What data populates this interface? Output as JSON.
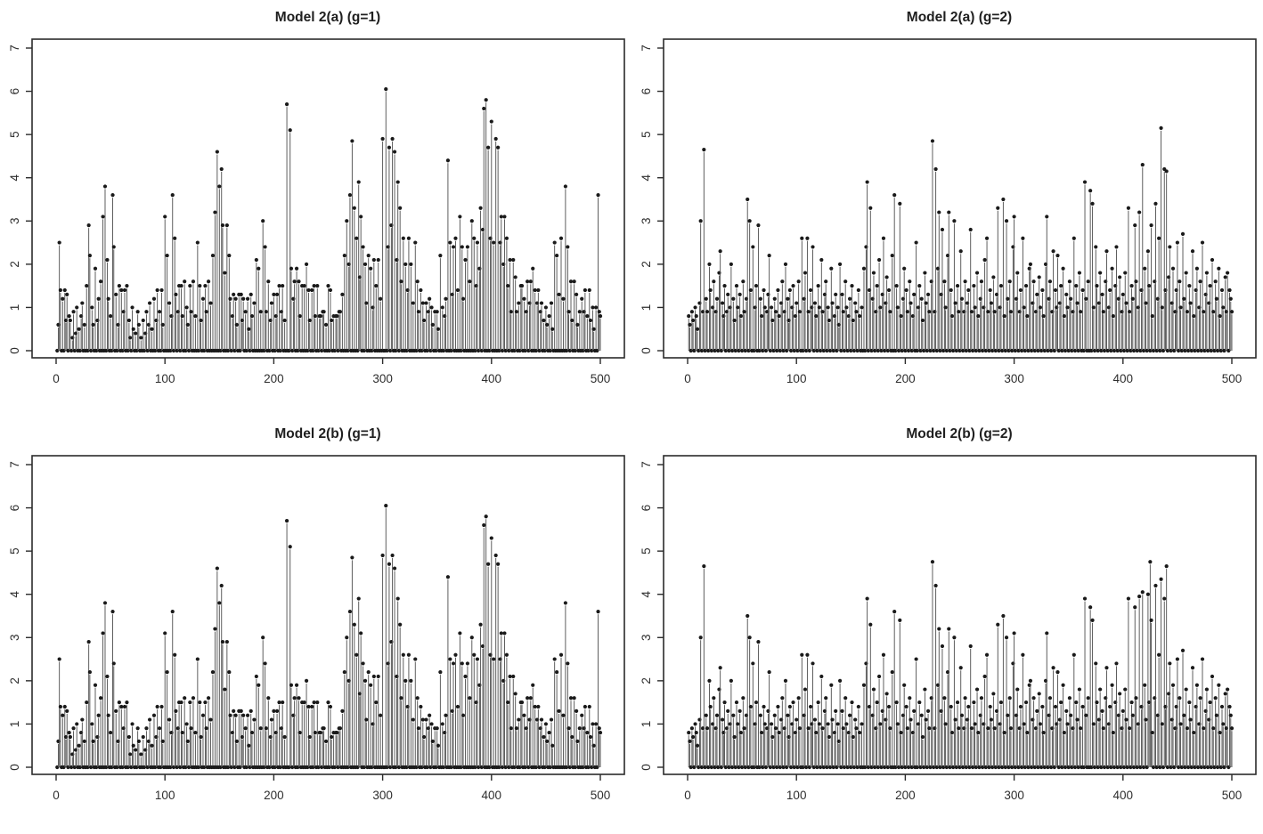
{
  "figure": {
    "kind": "R-style 2x2 stem plot grid",
    "background": "#ffffff"
  },
  "chart_data": {
    "type": "stem",
    "marker": "filled-dot",
    "xlim": [
      0,
      500
    ],
    "ylim": [
      0,
      7
    ],
    "x_ticks": [
      0,
      100,
      200,
      300,
      400,
      500
    ],
    "y_ticks": [
      0,
      1,
      2,
      3,
      4,
      5,
      6,
      7
    ],
    "grid": "off",
    "legend": "none",
    "xlabel": "",
    "ylabel": "",
    "n_points": 500,
    "colors": {
      "stem": "#4d4d4d",
      "point": "#1a1a1a",
      "axis": "#2b2b2b",
      "title": "#1f1f1f",
      "background": "#ffffff"
    },
    "panels": [
      {
        "title": "Model 2(a) (g=1)",
        "series": "g1"
      },
      {
        "title": "Model 2(a) (g=2)",
        "series": "g2"
      },
      {
        "title": "Model 2(b) (g=1)",
        "series": "g1"
      },
      {
        "title": "Model 2(b) (g=2)",
        "series": "g2",
        "overrides": "g2b"
      }
    ],
    "series": {
      "g1": [
        0,
        0.6,
        2.5,
        1.4,
        0,
        1.2,
        0,
        1.4,
        0.7,
        1.3,
        0,
        0.8,
        0.7,
        0,
        0.3,
        0.9,
        0,
        0.4,
        1.0,
        0,
        0.5,
        0,
        0.8,
        1.1,
        0,
        0.6,
        0,
        1.5,
        0,
        2.9,
        2.2,
        0,
        1.0,
        0.6,
        0,
        1.9,
        0,
        0.7,
        1.2,
        0,
        1.6,
        0,
        3.1,
        0,
        3.8,
        0,
        2.1,
        1.2,
        0,
        0.8,
        0,
        3.6,
        2.4,
        0,
        1.3,
        0,
        0.6,
        1.5,
        0,
        1.4,
        0,
        0.9,
        1.4,
        0,
        1.5,
        0,
        0.7,
        0.3,
        0,
        1.0,
        0.5,
        0,
        0.4,
        0,
        0.9,
        0.6,
        0,
        0.3,
        0,
        0.7,
        0,
        0.4,
        0.9,
        0,
        0.6,
        1.1,
        0,
        0.5,
        0,
        1.2,
        0,
        0.7,
        1.4,
        0,
        0.9,
        0,
        1.4,
        0.6,
        0,
        3.1,
        0,
        2.2,
        0,
        1.1,
        0,
        0.8,
        3.6,
        0,
        2.6,
        1.3,
        0,
        0.9,
        1.5,
        0,
        1.5,
        0.8,
        0,
        1.6,
        0,
        1.0,
        0.6,
        0,
        1.5,
        0.9,
        0,
        1.6,
        0,
        0.8,
        0,
        2.5,
        0,
        1.5,
        0.7,
        0,
        1.2,
        0,
        1.5,
        0.9,
        0,
        1.6,
        0,
        1.1,
        0,
        2.2,
        0,
        3.2,
        0,
        4.6,
        0,
        3.8,
        0,
        4.2,
        2.9,
        0,
        1.8,
        0,
        2.9,
        0,
        2.2,
        1.2,
        0,
        0.8,
        1.3,
        0,
        1.2,
        0.6,
        0,
        1.3,
        0,
        1.3,
        0.7,
        1.2,
        0,
        0.9,
        0,
        1.2,
        0.5,
        0,
        1.3,
        0.8,
        0,
        1.1,
        0,
        2.1,
        0,
        1.9,
        0,
        0.9,
        0,
        3.0,
        0,
        2.4,
        0.9,
        0,
        1.6,
        0,
        0.7,
        1.1,
        0,
        1.3,
        0,
        0.8,
        1.3,
        0,
        1.5,
        0,
        0.9,
        1.5,
        0,
        0.7,
        0,
        5.7,
        0,
        0,
        5.1,
        1.9,
        0,
        1.2,
        1.6,
        0,
        1.9,
        0,
        1.6,
        0.8,
        0,
        1.5,
        0,
        1.5,
        0,
        2.0,
        0,
        1.4,
        0.7,
        0,
        1.4,
        0,
        1.5,
        0.8,
        0,
        1.5,
        0,
        0.8,
        0.8,
        0,
        0.9,
        0.9,
        0,
        0.6,
        0,
        1.5,
        0,
        1.4,
        0.7,
        0,
        0.8,
        0,
        0.8,
        0.8,
        0,
        0.9,
        0.9,
        0,
        1.3,
        0,
        2.2,
        0,
        3.0,
        0,
        2.0,
        3.6,
        0,
        4.85,
        0,
        3.3,
        0,
        2.6,
        0,
        3.9,
        1.7,
        3.1,
        0,
        2.4,
        0,
        2.0,
        1.1,
        0,
        2.2,
        0,
        1.9,
        0,
        1.0,
        2.1,
        0,
        1.5,
        0,
        2.1,
        0,
        1.2,
        0,
        4.9,
        0,
        0,
        6.05,
        0,
        2.4,
        4.7,
        0,
        2.9,
        4.9,
        0,
        4.6,
        0,
        2.1,
        3.9,
        0,
        3.3,
        1.6,
        0,
        2.6,
        0,
        2.0,
        0,
        1.4,
        2.6,
        0,
        2.0,
        0,
        1.1,
        0,
        2.5,
        0,
        1.6,
        0.9,
        0,
        1.4,
        0,
        1.1,
        0.7,
        0,
        1.1,
        0,
        0.9,
        1.2,
        0,
        1.0,
        0.6,
        0,
        0.9,
        0,
        0.9,
        0.5,
        0,
        2.2,
        0,
        1.0,
        0,
        0.8,
        1.2,
        0,
        4.4,
        0,
        2.5,
        0,
        1.3,
        2.4,
        0,
        2.6,
        0,
        1.4,
        0,
        3.1,
        0,
        2.4,
        1.2,
        0,
        2.1,
        0,
        2.4,
        0,
        1.6,
        0,
        3.0,
        0,
        2.6,
        0,
        1.5,
        2.5,
        0,
        1.9,
        3.3,
        0,
        2.8,
        5.6,
        0,
        5.8,
        0,
        4.7,
        0,
        2.6,
        5.3,
        0,
        2.5,
        0,
        4.9,
        0,
        4.7,
        0,
        2.5,
        3.1,
        0,
        2.0,
        3.1,
        0,
        2.6,
        1.5,
        0,
        2.1,
        0.9,
        0,
        2.1,
        0,
        1.7,
        0.9,
        0,
        1.1,
        0,
        1.5,
        1.5,
        0,
        1.2,
        0,
        0.9,
        1.6,
        0,
        1.1,
        1.6,
        0,
        1.9,
        0,
        1.4,
        0,
        1.1,
        1.4,
        0,
        0.9,
        1.1,
        0,
        0.7,
        0,
        1.0,
        0.6,
        0,
        0.8,
        0,
        1.1,
        0.5,
        0,
        2.5,
        0,
        2.2,
        0,
        1.3,
        0,
        2.6,
        0,
        1.2,
        0,
        3.8,
        0,
        2.4,
        0.9,
        0,
        1.6,
        0.7,
        0,
        1.6,
        0,
        1.3,
        0.6,
        0,
        0.9,
        0,
        1.2,
        0,
        0.9,
        1.4,
        0,
        0.8,
        0,
        1.4,
        0.7,
        0,
        1.0,
        0.5,
        0,
        1.0,
        0,
        3.6,
        0.9,
        0.8
      ],
      "g2": [
        0.8,
        0.6,
        0,
        0.9,
        0.7,
        0,
        1.0,
        0.8,
        0.5,
        0,
        1.1,
        3.0,
        0,
        0.9,
        4.65,
        0,
        1.2,
        0.9,
        0,
        2.0,
        1.4,
        0,
        1.0,
        1.6,
        0,
        0.9,
        1.2,
        0,
        1.8,
        2.3,
        0,
        1.1,
        0.8,
        1.5,
        0,
        0.9,
        1.3,
        0,
        1.0,
        2.0,
        0,
        1.2,
        0.7,
        0,
        1.5,
        1.0,
        0,
        1.3,
        0.8,
        0,
        1.6,
        0.9,
        0,
        1.2,
        3.5,
        0,
        3.0,
        1.4,
        0,
        2.4,
        0,
        1.0,
        1.5,
        0,
        2.9,
        0,
        1.2,
        0.8,
        0,
        1.4,
        1.0,
        0,
        0.9,
        1.3,
        2.2,
        0,
        1.0,
        0.7,
        0,
        1.2,
        0.9,
        0,
        1.4,
        0.8,
        0,
        1.1,
        1.6,
        0,
        0.9,
        2.0,
        0,
        1.2,
        0.7,
        1.4,
        0,
        1.0,
        1.5,
        0,
        0.8,
        1.1,
        0,
        1.6,
        0.9,
        0,
        2.6,
        0,
        1.2,
        1.8,
        0,
        2.6,
        0.9,
        0,
        1.4,
        1.0,
        2.4,
        0,
        1.1,
        0.8,
        0,
        1.5,
        1.0,
        0,
        2.1,
        0.9,
        0,
        1.3,
        1.6,
        0,
        1.0,
        0.7,
        0,
        1.9,
        1.1,
        0,
        0.8,
        1.3,
        0,
        1.0,
        0.6,
        2.0,
        0,
        1.3,
        0.9,
        0,
        1.6,
        1.0,
        0,
        0.8,
        1.2,
        0,
        1.5,
        0.7,
        0,
        1.1,
        0.9,
        0,
        1.4,
        0.8,
        0,
        1.0,
        0,
        1.9,
        0,
        2.4,
        3.9,
        0,
        1.4,
        3.3,
        0,
        1.2,
        1.8,
        0,
        0.9,
        1.5,
        0,
        2.1,
        1.0,
        0,
        1.3,
        2.6,
        0,
        1.1,
        1.7,
        0,
        1.4,
        0.9,
        0,
        2.2,
        0,
        3.6,
        0,
        1.5,
        1.0,
        0,
        3.4,
        0.8,
        0,
        1.2,
        1.9,
        0,
        1.4,
        0.9,
        0,
        1.6,
        1.1,
        0,
        0.8,
        1.3,
        0,
        2.5,
        0,
        1.0,
        1.5,
        0,
        1.2,
        0.7,
        0,
        1.8,
        1.1,
        0,
        1.3,
        0.9,
        0,
        1.6,
        4.85,
        0,
        0.9,
        4.2,
        0,
        1.9,
        3.2,
        0,
        1.3,
        2.8,
        0,
        1.6,
        1.0,
        0,
        2.2,
        3.2,
        0,
        1.4,
        0.8,
        0,
        3.0,
        1.1,
        0,
        1.5,
        0.9,
        0,
        2.3,
        1.2,
        0,
        0.9,
        1.6,
        0,
        1.1,
        1.4,
        0,
        2.8,
        0.9,
        0,
        1.5,
        1.0,
        0,
        1.8,
        0.8,
        0,
        1.2,
        1.6,
        0,
        1.0,
        2.1,
        0,
        2.6,
        0.9,
        0,
        1.4,
        1.1,
        0,
        1.7,
        0.9,
        0,
        1.3,
        3.3,
        0,
        1.0,
        1.5,
        0,
        3.5,
        0.8,
        0,
        3.0,
        1.2,
        0,
        1.6,
        0.9,
        0,
        2.4,
        3.1,
        0,
        1.2,
        1.8,
        0,
        0.9,
        1.4,
        0,
        2.6,
        1.0,
        0,
        1.5,
        0.8,
        0,
        1.9,
        2.0,
        0,
        1.1,
        1.6,
        0,
        0.9,
        1.3,
        0,
        1.7,
        1.0,
        0,
        1.4,
        0.8,
        0,
        2.0,
        3.1,
        0,
        1.2,
        1.6,
        0,
        0.9,
        2.3,
        0,
        1.4,
        1.0,
        2.2,
        0,
        1.1,
        1.5,
        0,
        1.9,
        0.8,
        0,
        1.3,
        1.0,
        0,
        1.6,
        1.2,
        0,
        0.9,
        2.6,
        0,
        1.5,
        1.1,
        0,
        1.8,
        0.9,
        0,
        1.4,
        0,
        3.9,
        1.2,
        0,
        1.6,
        0,
        3.7,
        0,
        3.4,
        1.0,
        0,
        2.4,
        1.5,
        0,
        1.1,
        1.8,
        0,
        1.3,
        0.9,
        0,
        1.6,
        2.3,
        0,
        1.0,
        1.4,
        0,
        1.9,
        0.8,
        0,
        1.5,
        2.4,
        0,
        1.2,
        1.7,
        0,
        0.9,
        1.3,
        0,
        1.8,
        1.1,
        0,
        3.3,
        0.9,
        0,
        1.5,
        1.2,
        0,
        2.9,
        1.6,
        0,
        1.0,
        3.2,
        0,
        1.4,
        4.3,
        0,
        1.9,
        1.1,
        0,
        2.3,
        1.5,
        0,
        2.9,
        0.8,
        0,
        1.6,
        3.4,
        0,
        1.2,
        2.6,
        0,
        5.15,
        1.0,
        0,
        4.2,
        1.4,
        4.15,
        0,
        1.7,
        2.4,
        0,
        1.1,
        1.9,
        0,
        0.9,
        1.4,
        2.5,
        0,
        1.6,
        1.0,
        0,
        2.7,
        1.2,
        0,
        1.8,
        0.9,
        0,
        1.5,
        1.1,
        0,
        2.3,
        0.8,
        0,
        1.4,
        1.9,
        0,
        1.0,
        1.6,
        0,
        2.5,
        0.9,
        0,
        1.3,
        1.8,
        0,
        1.1,
        1.5,
        0,
        2.1,
        0.9,
        0,
        1.6,
        1.2,
        0,
        1.9,
        0.8,
        0,
        1.4,
        1.0,
        0,
        1.7,
        0.9,
        1.8,
        0,
        1.4,
        1.2,
        0.9
      ]
    },
    "overrides": {
      "g2b": {
        "224": 4.75,
        "404": 3.9,
        "410": 3.7,
        "414": 3.95,
        "417": 4.05,
        "422": 4.0,
        "424": 4.75,
        "425": 3.4,
        "429": 4.2,
        "434": 4.35,
        "437": 3.9,
        "439": 4.65
      }
    }
  }
}
